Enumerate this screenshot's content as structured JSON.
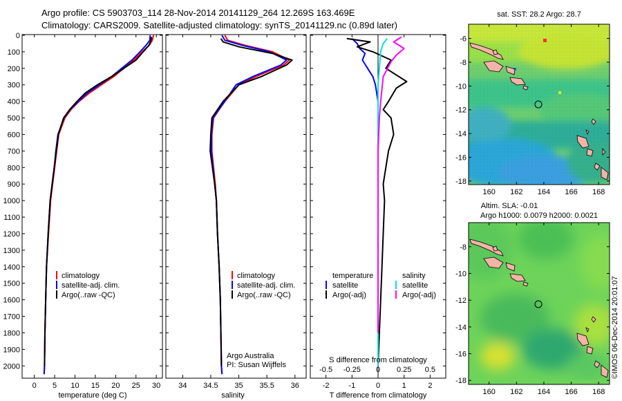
{
  "title": {
    "line1": "Argo profile: CS 5903703_114 28-Nov-2014 20141129_264 12.269S 163.469E",
    "line2": "Climatology: CARS2009. Satellite-adjusted climatology: synTS_20141129.nc (0.89d later)"
  },
  "colors": {
    "climatology": "#ff0000",
    "satellite": "#0000ff",
    "argo": "#000000",
    "salinity_satellite": "#00e0e0",
    "salinity_argo": "#ff00ff"
  },
  "depth_axis": {
    "ticks": [
      "0",
      "100",
      "200",
      "300",
      "400",
      "500",
      "600",
      "700",
      "800",
      "900",
      "1000",
      "1100",
      "1200",
      "1300",
      "1400",
      "1500",
      "1600",
      "1700",
      "1800",
      "1900",
      "2000"
    ],
    "min": 0,
    "max": 2070
  },
  "chart_data": [
    {
      "type": "line",
      "xlabel": "temperature (deg C)",
      "xticks": [
        "0",
        "5",
        "10",
        "15",
        "20",
        "25",
        "30"
      ],
      "xlim": [
        -3,
        31.5
      ],
      "ylim": [
        2070,
        0
      ],
      "legend": [
        "climatology",
        "satellite-adj. clim.",
        "Argo(..raw -QC)"
      ],
      "series": [
        {
          "name": "climatology",
          "color": "#ff0000",
          "x": [
            29.3,
            29.0,
            28.3,
            26.5,
            24.5,
            22.0,
            19.5,
            16.5,
            13.5,
            11.0,
            9.0,
            7.5,
            6.0,
            5.5,
            5.0,
            4.5,
            4.0,
            3.5,
            3.0,
            2.8,
            2.6,
            2.5,
            2.4
          ],
          "y": [
            0,
            30,
            60,
            100,
            150,
            200,
            250,
            300,
            350,
            400,
            450,
            500,
            600,
            700,
            800,
            900,
            1000,
            1200,
            1400,
            1600,
            1800,
            2000,
            2050
          ]
        },
        {
          "name": "satellite-adj. clim.",
          "color": "#0000ff",
          "x": [
            28.5,
            28.4,
            27.5,
            26.0,
            24.0,
            21.5,
            19.0,
            16.0,
            13.0,
            10.8,
            8.8,
            7.3,
            5.8,
            5.3,
            4.9,
            4.4,
            3.9,
            3.4,
            3.0,
            2.8,
            2.6,
            2.5,
            2.4
          ],
          "y": [
            0,
            30,
            60,
            100,
            150,
            200,
            250,
            300,
            350,
            400,
            450,
            500,
            600,
            700,
            800,
            900,
            1000,
            1200,
            1400,
            1600,
            1800,
            2000,
            2050
          ]
        },
        {
          "name": "Argo(..raw -QC)",
          "color": "#000000",
          "x": [
            28.8,
            28.7,
            28.2,
            26.8,
            25.0,
            22.0,
            19.0,
            15.5,
            12.5,
            10.5,
            8.7,
            7.2,
            5.9,
            5.4,
            4.9,
            4.4,
            3.9,
            3.4,
            3.0,
            2.8,
            2.6,
            2.5
          ],
          "y": [
            10,
            30,
            60,
            100,
            150,
            200,
            250,
            300,
            350,
            400,
            450,
            500,
            600,
            700,
            800,
            900,
            1000,
            1200,
            1400,
            1600,
            1800,
            2000
          ]
        }
      ]
    },
    {
      "type": "line",
      "xlabel": "salinity",
      "xticks": [
        "34",
        "34.5",
        "35",
        "35.5",
        "36"
      ],
      "xlim": [
        33.7,
        36.2
      ],
      "ylim": [
        2070,
        0
      ],
      "legend": [
        "climatology",
        "satellite-adj. clim.",
        "Argo(..raw -QC)"
      ],
      "annotation": [
        "Argo Australia",
        "PI: Susan Wijffels"
      ],
      "series": [
        {
          "name": "climatology",
          "color": "#ff0000",
          "x": [
            34.75,
            34.8,
            35.1,
            35.6,
            35.9,
            35.8,
            35.3,
            35.0,
            34.75,
            34.65,
            34.55,
            34.52,
            34.52,
            34.55,
            34.58,
            34.6,
            34.62,
            34.65,
            34.67,
            34.68,
            34.69,
            34.7
          ],
          "y": [
            0,
            30,
            60,
            100,
            150,
            180,
            250,
            300,
            400,
            450,
            500,
            600,
            700,
            800,
            900,
            1000,
            1200,
            1400,
            1600,
            1800,
            2000,
            2050
          ]
        },
        {
          "name": "satellite-adj. clim.",
          "color": "#0000ff",
          "x": [
            34.7,
            34.75,
            35.05,
            35.55,
            35.85,
            35.75,
            35.25,
            34.95,
            34.75,
            34.64,
            34.54,
            34.51,
            34.51,
            34.54,
            34.57,
            34.6,
            34.62,
            34.65,
            34.67,
            34.68,
            34.69,
            34.7
          ],
          "y": [
            0,
            30,
            60,
            100,
            150,
            180,
            250,
            300,
            400,
            450,
            500,
            600,
            700,
            800,
            900,
            1000,
            1200,
            1400,
            1600,
            1800,
            2000,
            2050
          ]
        },
        {
          "name": "Argo(..raw -QC)",
          "color": "#000000",
          "x": [
            34.68,
            34.72,
            35.0,
            35.6,
            35.95,
            35.85,
            35.4,
            35.0,
            34.72,
            34.62,
            34.52,
            34.5,
            34.49,
            34.53,
            34.57,
            34.6,
            34.62,
            34.65,
            34.67,
            34.68,
            34.69
          ],
          "y": [
            20,
            40,
            70,
            110,
            150,
            180,
            250,
            300,
            400,
            450,
            500,
            600,
            700,
            800,
            900,
            1000,
            1200,
            1400,
            1600,
            1800,
            2000
          ]
        }
      ]
    },
    {
      "type": "line",
      "xlabel": "T difference from climatology",
      "xticks": [
        "-2",
        "-1",
        "0",
        "1",
        "2"
      ],
      "xlim": [
        -2.6,
        2.6
      ],
      "x2label": "S difference from climatology",
      "x2ticks": [
        "-0.5",
        "-0.25",
        "0",
        "0.25",
        "0.5"
      ],
      "ylim": [
        2070,
        0
      ],
      "legend_temperature": {
        "title": "temperature",
        "items": [
          "satellite",
          "Argo(-adj)"
        ]
      },
      "legend_salinity": {
        "title": "salinity",
        "items": [
          "satellite",
          "Argo(-adj)"
        ]
      },
      "series": [
        {
          "name": "satellite",
          "color": "#0000ff",
          "x": [
            -1.0,
            -0.8,
            -0.7,
            -0.5,
            -0.6,
            -0.4,
            -0.2,
            -0.1,
            0.0,
            0.0,
            0.0,
            0.0,
            0.0,
            0.0,
            0.0,
            0.0
          ],
          "y": [
            20,
            50,
            80,
            110,
            150,
            200,
            250,
            300,
            400,
            500,
            700,
            900,
            1200,
            1500,
            1800,
            2000
          ]
        },
        {
          "name": "Argo(-adj)",
          "color": "#000000",
          "x": [
            -1.2,
            -0.3,
            -0.8,
            -0.2,
            0.5,
            0.3,
            1.1,
            0.7,
            0.4,
            0.2,
            0.5,
            0.6,
            0.4,
            0.3,
            0.2,
            0.25,
            0.2,
            0.15,
            0.1,
            0.05,
            0.0
          ],
          "y": [
            20,
            40,
            70,
            100,
            150,
            200,
            280,
            320,
            400,
            450,
            500,
            600,
            700,
            800,
            900,
            1000,
            1200,
            1400,
            1600,
            1800,
            2000
          ]
        },
        {
          "name": "salinity satellite",
          "color": "#00e0e0",
          "x": [
            0.35,
            0.2,
            0.1,
            0.05,
            0.0,
            0.0,
            0.0,
            0.0,
            0.0,
            0.0,
            0.0,
            0.0,
            0.0
          ],
          "y": [
            20,
            50,
            100,
            200,
            300,
            400,
            500,
            700,
            900,
            1200,
            1500,
            1800,
            2000
          ]
        },
        {
          "name": "salinity Argo(-adj)",
          "color": "#ff00ff",
          "x": [
            0.9,
            0.6,
            1.0,
            0.7,
            0.5,
            0.2,
            0.1,
            0.05,
            0.0,
            0.0,
            0.0,
            0.0,
            0.0
          ],
          "y": [
            10,
            40,
            80,
            120,
            160,
            250,
            400,
            500,
            700,
            900,
            1200,
            1500,
            1800
          ]
        }
      ]
    },
    {
      "type": "heatmap",
      "title": "sat. SST: 28.2  Argo: 28.7",
      "xticks": [
        "160",
        "162",
        "164",
        "166",
        "168"
      ],
      "yticks": [
        "-6",
        "-8",
        "-10",
        "-12",
        "-14",
        "-16",
        "-18"
      ],
      "xlim": [
        158.5,
        168.8
      ],
      "ylim": [
        -18.3,
        -4.8
      ],
      "marker": {
        "lon": 163.469,
        "lat": -12.269
      }
    },
    {
      "type": "heatmap",
      "title": "Altim. SLA: -0.01",
      "subtitle": "Argo h1000: 0.0079 h2000: 0.0021",
      "xticks": [
        "160",
        "162",
        "164",
        "166",
        "168"
      ],
      "yticks": [
        "-8",
        "-10",
        "-12",
        "-14",
        "-16",
        "-18"
      ],
      "xlim": [
        158.5,
        168.8
      ],
      "ylim": [
        -18.3,
        -6.2
      ],
      "marker": {
        "lon": 163.469,
        "lat": -12.269
      }
    }
  ],
  "credit": "©IMOS 06-Dec-2014 20:01:07"
}
